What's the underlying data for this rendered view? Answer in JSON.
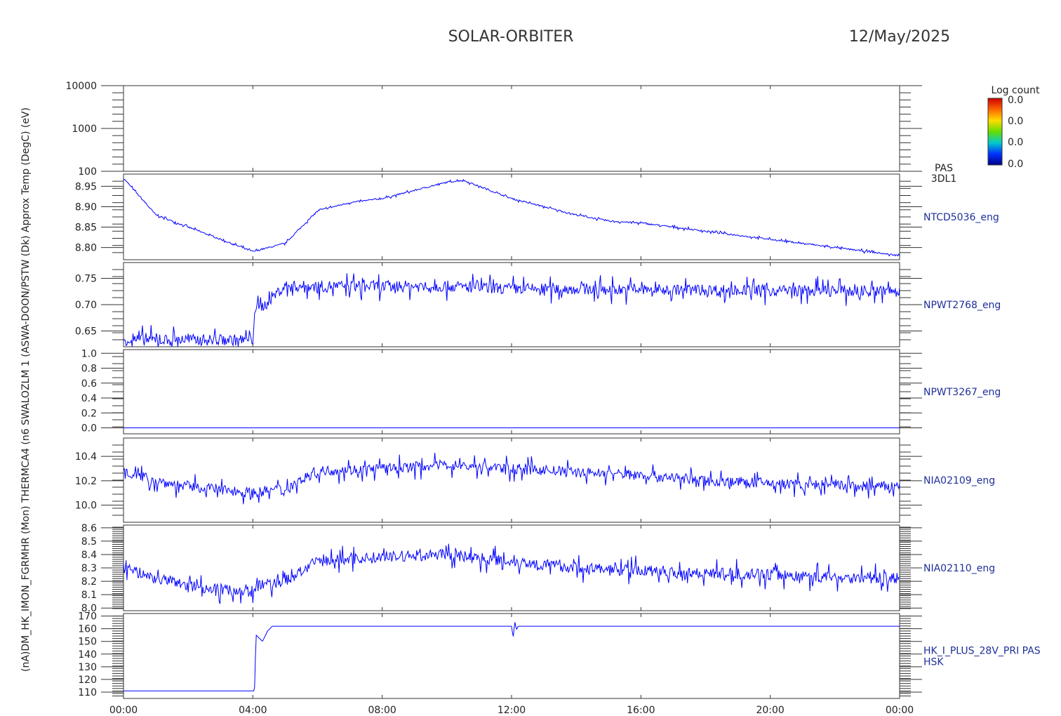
{
  "header": {
    "mission": "SOLAR-ORBITER",
    "date": "12/May/2025"
  },
  "colorbar": {
    "title": "Log count",
    "labels": [
      "0.0",
      "0.0",
      "0.0",
      "0.0"
    ],
    "colors": [
      "#cc0000",
      "#ff6600",
      "#ffdd00",
      "#66dd00",
      "#00cccc",
      "#0033ff",
      "#000088"
    ]
  },
  "trace_color": "#0000ff",
  "ylabel_stack": "(nA)DM_HK_IMON_FGRMHR (Mon) THERMCA4 (n6 SWALOZLM 1 (ASWA-DOON/PSTW (Dk) Approx Temp (DegC) (eV)",
  "chart_data": [
    {
      "type": "heatmap",
      "ylabel": "(eV)",
      "yscale": "log",
      "ylim": [
        100,
        10000
      ],
      "yticks": [
        "10000",
        "1000",
        "100"
      ],
      "ytick_values": [
        10000,
        1000,
        100
      ],
      "right_label": [
        "PAS",
        "3DL1"
      ],
      "values": []
    },
    {
      "type": "line",
      "right_label": "NTCD5036_eng",
      "ylim": [
        8.77,
        8.98
      ],
      "yticks": [
        "8.95",
        "8.90",
        "8.85",
        "8.80"
      ],
      "ytick_values": [
        8.95,
        8.9,
        8.85,
        8.8
      ],
      "x": [
        0,
        1,
        2,
        3,
        4,
        4.5,
        5,
        6,
        7,
        8,
        9,
        10,
        10.5,
        11,
        12,
        13,
        14,
        15,
        16,
        17,
        18,
        19,
        20,
        21,
        22,
        23,
        24
      ],
      "y": [
        8.97,
        8.88,
        8.85,
        8.82,
        8.79,
        8.8,
        8.81,
        8.89,
        8.91,
        8.92,
        8.94,
        8.96,
        8.965,
        8.95,
        8.92,
        8.9,
        8.88,
        8.865,
        8.86,
        8.85,
        8.84,
        8.83,
        8.82,
        8.81,
        8.8,
        8.79,
        8.78
      ],
      "noise": 0.003
    },
    {
      "type": "line",
      "right_label": "NPWT2768_eng",
      "ylim": [
        0.62,
        0.78
      ],
      "yticks": [
        "0.75",
        "0.70",
        "0.65"
      ],
      "ytick_values": [
        0.75,
        0.7,
        0.65
      ],
      "x": [
        0,
        4.0,
        4.05,
        4.4,
        4.6,
        5.0,
        6,
        8,
        10,
        12,
        14,
        16,
        18,
        20,
        22,
        24
      ],
      "y": [
        0.633,
        0.633,
        0.69,
        0.7,
        0.715,
        0.735,
        0.735,
        0.735,
        0.735,
        0.73,
        0.73,
        0.728,
        0.728,
        0.727,
        0.726,
        0.725
      ],
      "noise": 0.018
    },
    {
      "type": "line",
      "right_label": "NPWT3267_eng",
      "ylim": [
        -0.08,
        1.05
      ],
      "yticks": [
        "1.0",
        "0.8",
        "0.6",
        "0.4",
        "0.2",
        "0.0"
      ],
      "ytick_values": [
        1.0,
        0.8,
        0.6,
        0.4,
        0.2,
        0.0
      ],
      "x": [
        0,
        24
      ],
      "y": [
        0.0,
        0.0
      ],
      "noise": 0
    },
    {
      "type": "line",
      "right_label": "NIA02109_eng",
      "ylim": [
        9.86,
        10.55
      ],
      "yticks": [
        "10.4",
        "10.2",
        "10.0"
      ],
      "ytick_values": [
        10.4,
        10.2,
        10.0
      ],
      "x": [
        0,
        0.2,
        1,
        2,
        3,
        4,
        5,
        6,
        8,
        10,
        12,
        14,
        16,
        18,
        20,
        22,
        24
      ],
      "y": [
        10.3,
        10.26,
        10.2,
        10.15,
        10.13,
        10.1,
        10.14,
        10.28,
        10.3,
        10.33,
        10.3,
        10.27,
        10.25,
        10.2,
        10.18,
        10.16,
        10.15
      ],
      "noise": 0.07
    },
    {
      "type": "line",
      "right_label": "NIA02110_eng",
      "ylim": [
        7.98,
        8.62
      ],
      "yticks": [
        "8.6",
        "8.5",
        "8.4",
        "8.3",
        "8.2",
        "8.1",
        "8.0"
      ],
      "ytick_values": [
        8.6,
        8.5,
        8.4,
        8.3,
        8.2,
        8.1,
        8.0
      ],
      "x": [
        0,
        0.2,
        1,
        2,
        3,
        4,
        4.2,
        5,
        6,
        8,
        10,
        12,
        14,
        16,
        18,
        20,
        22,
        24
      ],
      "y": [
        8.34,
        8.28,
        8.22,
        8.17,
        8.14,
        8.12,
        8.17,
        8.2,
        8.35,
        8.38,
        8.4,
        8.35,
        8.3,
        8.28,
        8.26,
        8.25,
        8.23,
        8.22
      ],
      "noise": 0.07
    },
    {
      "type": "line",
      "right_label": [
        "HK_I_PLUS_28V_PRI PAS",
        "HSK"
      ],
      "ylim": [
        105,
        172
      ],
      "yticks": [
        "170",
        "160",
        "150",
        "140",
        "130",
        "120",
        "110"
      ],
      "ytick_values": [
        170,
        160,
        150,
        140,
        130,
        120,
        110
      ],
      "x": [
        0,
        4.05,
        4.1,
        4.3,
        4.45,
        4.6,
        4.7,
        12.0,
        12.05,
        12.1,
        12.15,
        12.2,
        24
      ],
      "y": [
        111,
        111,
        155,
        150,
        158,
        162,
        162,
        162,
        153,
        166,
        159,
        162,
        162
      ],
      "noise": 0
    }
  ],
  "x_axis": {
    "xlim": [
      0,
      24
    ],
    "ticks": [
      "00:00",
      "04:00",
      "08:00",
      "12:00",
      "16:00",
      "20:00",
      "00:00"
    ],
    "tick_values": [
      0,
      4,
      8,
      12,
      16,
      20,
      24
    ]
  }
}
